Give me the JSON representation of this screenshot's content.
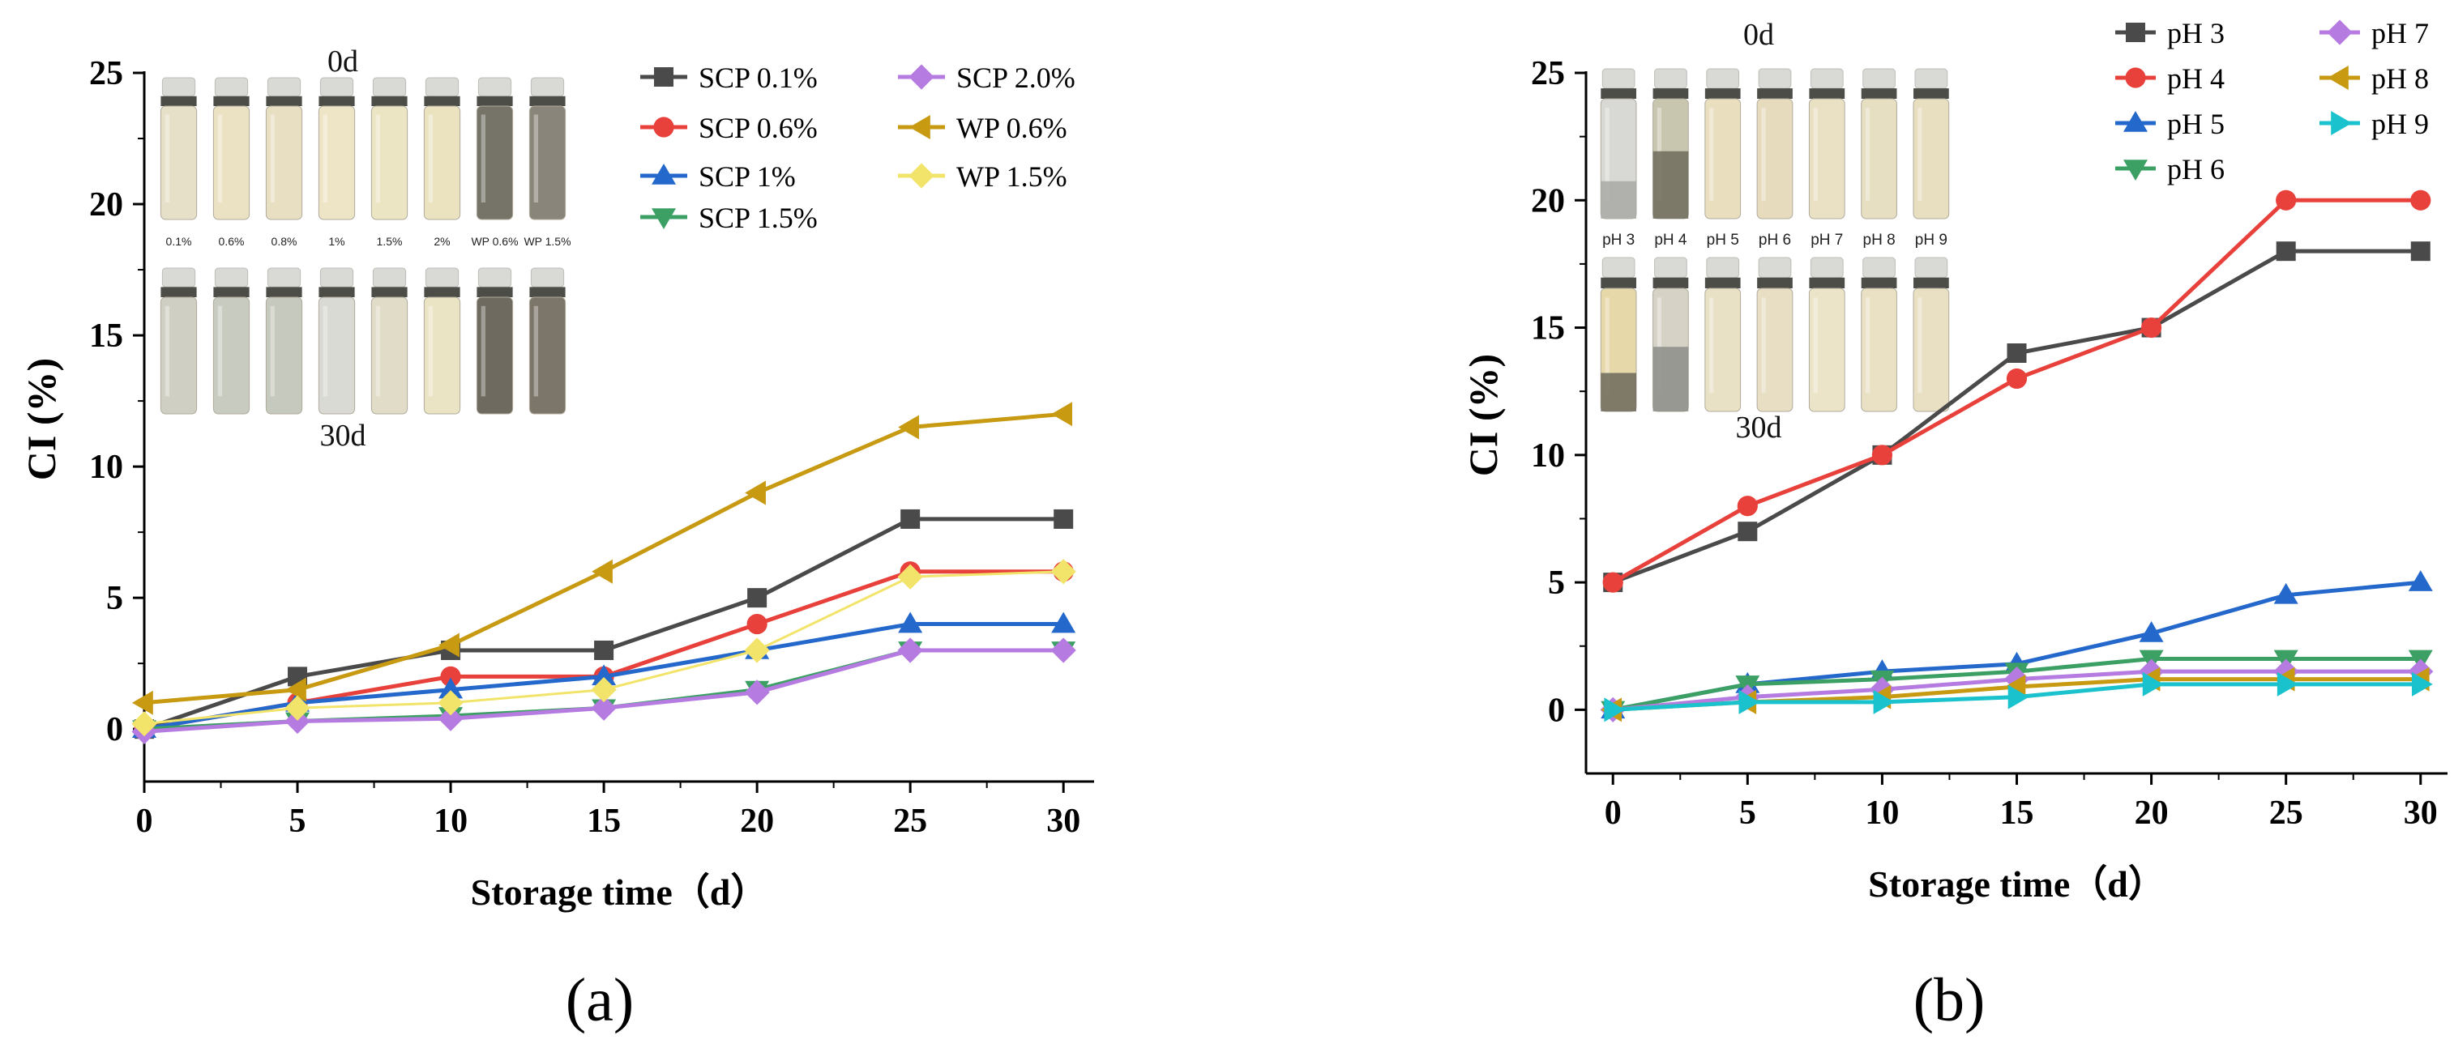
{
  "chart_data": [
    {
      "type": "line",
      "panel_label": "(a)",
      "xlabel": "Storage time（d）",
      "ylabel": "CI (%)",
      "xlim": [
        0,
        31
      ],
      "ylim": [
        -2,
        25
      ],
      "x_ticks": [
        0,
        5,
        10,
        15,
        20,
        25,
        30
      ],
      "y_ticks": [
        0,
        5,
        10,
        15,
        20,
        25
      ],
      "x": [
        0,
        5,
        10,
        15,
        20,
        25,
        30
      ],
      "legend_position": "top-right",
      "series": [
        {
          "name": "SCP 0.1%",
          "color": "#4a4a4a",
          "marker": "square",
          "values": [
            0,
            2,
            3,
            3,
            5,
            8,
            8
          ]
        },
        {
          "name": "SCP 0.6%",
          "color": "#e8413c",
          "marker": "circle",
          "values": [
            0,
            1,
            2,
            2,
            4,
            6,
            6
          ]
        },
        {
          "name": "SCP 1%",
          "color": "#2468cc",
          "marker": "triangle-up",
          "values": [
            0,
            1,
            1.5,
            2,
            3,
            4,
            4
          ]
        },
        {
          "name": "SCP 1.5%",
          "color": "#3ca064",
          "marker": "triangle-down",
          "values": [
            0,
            0.3,
            0.5,
            0.8,
            1.5,
            3,
            3
          ]
        },
        {
          "name": "SCP 2.0%",
          "color": "#b57be0",
          "marker": "diamond",
          "values": [
            -0.1,
            0.3,
            0.4,
            0.8,
            1.4,
            3,
            3
          ]
        },
        {
          "name": "WP 0.6%",
          "color": "#c79a12",
          "marker": "triangle-left",
          "values": [
            1,
            1.5,
            3.2,
            6,
            9,
            11.5,
            12
          ]
        },
        {
          "name": "WP 1.5%",
          "color": "#f2e46a",
          "marker": "diamond",
          "values": [
            0.2,
            0.8,
            1,
            1.5,
            3,
            5.8,
            6
          ]
        }
      ],
      "inset": {
        "top_label": "0d",
        "bottom_label": "30d",
        "vial_labels": [
          "0.1%",
          "0.6%",
          "0.8%",
          "1%",
          "1.5%",
          "2%",
          "WP 0.6%",
          "WP 1.5%"
        ]
      }
    },
    {
      "type": "line",
      "panel_label": "(b)",
      "xlabel": "Storage time（d）",
      "ylabel": "CI (%)",
      "xlim": [
        -1,
        31
      ],
      "ylim": [
        -2.5,
        25
      ],
      "x_ticks": [
        0,
        5,
        10,
        15,
        20,
        25,
        30
      ],
      "y_ticks": [
        0,
        5,
        10,
        15,
        20,
        25
      ],
      "x": [
        0,
        5,
        10,
        15,
        20,
        25,
        30
      ],
      "legend_position": "top-right",
      "series": [
        {
          "name": "pH 3",
          "color": "#4a4a4a",
          "marker": "square",
          "values": [
            5,
            7,
            10,
            14,
            15,
            18,
            18
          ]
        },
        {
          "name": "pH 4",
          "color": "#e8413c",
          "marker": "circle",
          "values": [
            5,
            8,
            10,
            13,
            15,
            20,
            20
          ]
        },
        {
          "name": "pH 5",
          "color": "#2468cc",
          "marker": "triangle-up",
          "values": [
            0,
            1,
            1.5,
            1.8,
            3,
            4.5,
            5
          ]
        },
        {
          "name": "pH 6",
          "color": "#3ca064",
          "marker": "triangle-down",
          "values": [
            0,
            1,
            1.2,
            1.5,
            2,
            2,
            2
          ]
        },
        {
          "name": "pH 7",
          "color": "#b57be0",
          "marker": "diamond",
          "values": [
            0,
            0.5,
            0.8,
            1.2,
            1.5,
            1.5,
            1.5
          ]
        },
        {
          "name": "pH 8",
          "color": "#c79a12",
          "marker": "triangle-left",
          "values": [
            0,
            0.3,
            0.5,
            0.9,
            1.2,
            1.2,
            1.2
          ]
        },
        {
          "name": "pH 9",
          "color": "#19c2cc",
          "marker": "triangle-right",
          "values": [
            0,
            0.3,
            0.3,
            0.5,
            1,
            1,
            1
          ]
        }
      ],
      "inset": {
        "top_label": "0d",
        "bottom_label": "30d",
        "vial_labels": [
          "pH 3",
          "pH 4",
          "pH 5",
          "pH 6",
          "pH 7",
          "pH 8",
          "pH 9"
        ]
      }
    }
  ]
}
